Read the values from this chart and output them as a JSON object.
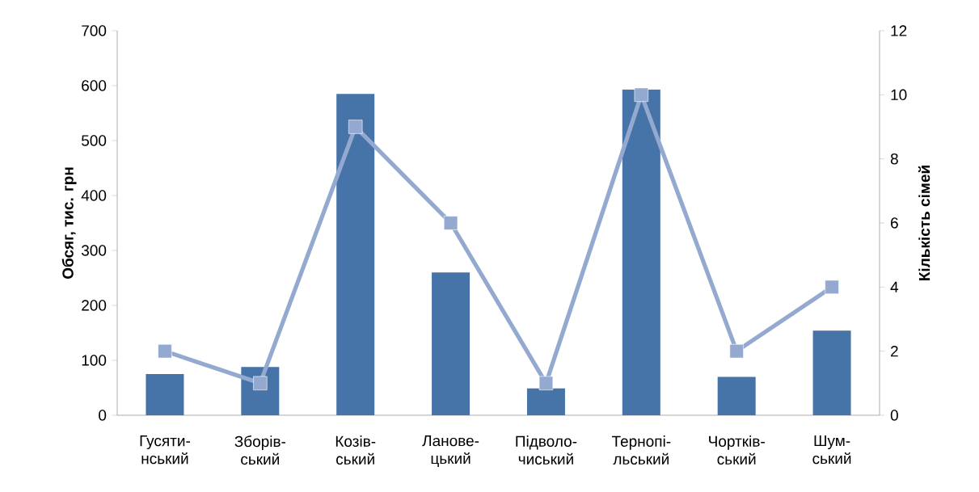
{
  "chart_data": {
    "type": "bar",
    "categories": [
      "Гусяти-нський",
      "Зборів-ський",
      "Козів-ський",
      "Ланове-цький",
      "Підволо-чиський",
      "Тернопі-льський",
      "Чортків-ський",
      "Шум-ський"
    ],
    "ylabel": "Обсяг, тис. грн",
    "y2label": "Кількість сімей",
    "series": [
      {
        "color": "#4673a8",
        "values": [
          75,
          88,
          585,
          260,
          49,
          593,
          70,
          154
        ]
      },
      {
        "type": "line",
        "axis": "y2",
        "color": "#93a9d0",
        "marker": "square",
        "values": [
          2,
          1,
          9,
          6,
          1,
          10,
          2,
          4
        ]
      }
    ],
    "ylim": [
      0,
      700
    ],
    "yticks": [
      0,
      100,
      200,
      300,
      400,
      500,
      600,
      700
    ],
    "y2lim": [
      0,
      12
    ],
    "y2ticks": [
      0,
      2,
      4,
      6,
      8,
      10,
      12
    ]
  }
}
